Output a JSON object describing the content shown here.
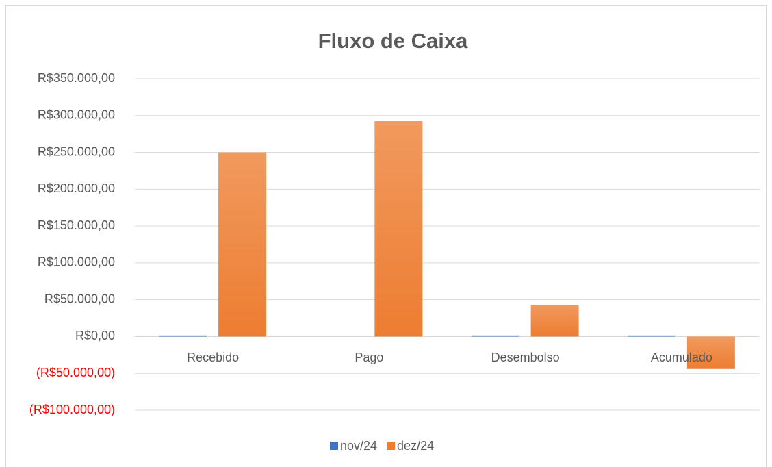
{
  "chart_data": {
    "type": "bar",
    "title": "Fluxo de Caixa",
    "categories": [
      "Recebido",
      "Pago",
      "Desembolso",
      "Acumulado"
    ],
    "series": [
      {
        "name": "nov/24",
        "color": "#4472c4",
        "values": [
          1500,
          0,
          1500,
          1500
        ]
      },
      {
        "name": "dez/24",
        "color": "#ed7d31",
        "values": [
          250000,
          293000,
          43000,
          -44000
        ]
      }
    ],
    "ylim": [
      -100000,
      350000
    ],
    "yticks": [
      {
        "value": -100000,
        "label": "(R$100.000,00)"
      },
      {
        "value": -50000,
        "label": "(R$50.000,00)"
      },
      {
        "value": 0,
        "label": "R$0,00"
      },
      {
        "value": 50000,
        "label": "R$50.000,00"
      },
      {
        "value": 100000,
        "label": "R$100.000,00"
      },
      {
        "value": 150000,
        "label": "R$150.000,00"
      },
      {
        "value": 200000,
        "label": "R$200.000,00"
      },
      {
        "value": 250000,
        "label": "R$250.000,00"
      },
      {
        "value": 300000,
        "label": "R$300.000,00"
      },
      {
        "value": 350000,
        "label": "R$350.000,00"
      }
    ],
    "negative_tick_color": "#ff0000",
    "grid": true,
    "legend": "bottom"
  }
}
